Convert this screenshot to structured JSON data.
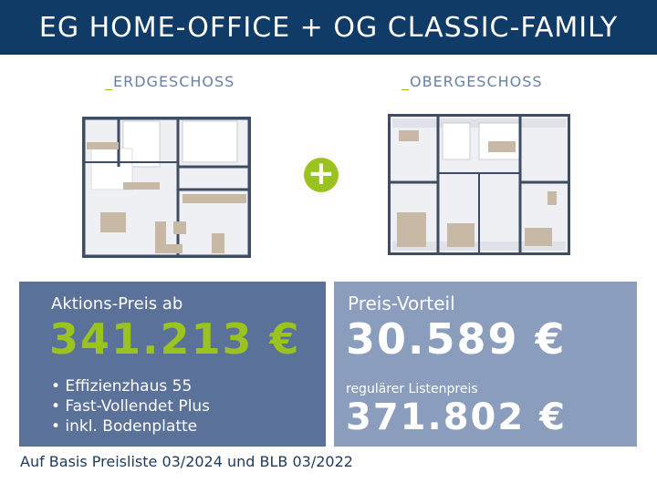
{
  "header": {
    "title": "EG HOME-OFFICE + OG CLASSIC-FAMILY"
  },
  "plans": {
    "ground": {
      "prefix": "_",
      "label": "ERDGESCHOSS"
    },
    "upper": {
      "prefix": "_",
      "label": "OBERGESCHOSS"
    },
    "plus_symbol": "+"
  },
  "offer": {
    "label": "Aktions-Preis ab",
    "price": "341.213 €",
    "features": [
      "• Effizienzhaus 55",
      "• Fast-Vollendet Plus",
      "• inkl. Bodenplatte"
    ]
  },
  "advantage": {
    "label": "Preis-Vorteil",
    "amount": "30.589 €",
    "list_label": "regulärer Listenpreis",
    "list_price": "371.802  €"
  },
  "footer": {
    "note": "Auf Basis Preisliste 03/2024 und BLB 03/2022"
  },
  "colors": {
    "header": "#0f3b66",
    "accent": "#9bc31f",
    "box_left": "#5a7199",
    "box_right": "#8b9dbd"
  }
}
